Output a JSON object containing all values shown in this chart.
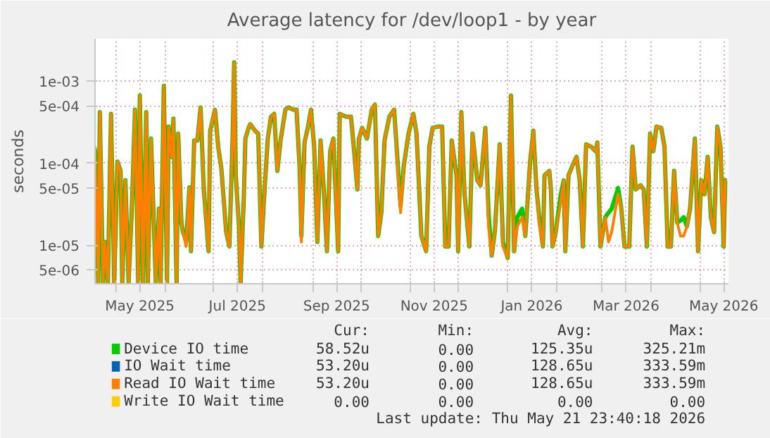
{
  "chart_data": {
    "type": "line",
    "title": "Average latency for /dev/loop1 - by year",
    "ylabel": "seconds",
    "log": "y",
    "grid": true,
    "legend": "bottom",
    "xlim": [
      "2025-04-18",
      "2026-05-19"
    ],
    "xticks": [
      {
        "value": "2025-05-01",
        "label": null
      },
      {
        "value": "2025-05-16",
        "label": "May 2025"
      },
      {
        "value": "2025-06-01",
        "label": null
      },
      {
        "value": "2025-07-01",
        "label": null
      },
      {
        "value": "2025-07-16",
        "label": "Jul 2025"
      },
      {
        "value": "2025-08-01",
        "label": null
      },
      {
        "value": "2025-09-01",
        "label": null
      },
      {
        "value": "2025-09-16",
        "label": "Sep 2025"
      },
      {
        "value": "2025-10-01",
        "label": null
      },
      {
        "value": "2025-11-01",
        "label": null
      },
      {
        "value": "2025-11-16",
        "label": "Nov 2025"
      },
      {
        "value": "2025-12-01",
        "label": null
      },
      {
        "value": "2026-01-01",
        "label": null
      },
      {
        "value": "2026-01-16",
        "label": "Jan 2026"
      },
      {
        "value": "2026-02-01",
        "label": null
      },
      {
        "value": "2026-03-01",
        "label": null
      },
      {
        "value": "2026-03-16",
        "label": "Mar 2026"
      },
      {
        "value": "2026-04-01",
        "label": null
      },
      {
        "value": "2026-05-01",
        "label": null
      },
      {
        "value": "2026-05-16",
        "label": "May 2026"
      }
    ],
    "ylim": [
      3.4e-06,
      0.0033
    ],
    "yticks": [
      {
        "value": 5e-06,
        "label": "5e-06"
      },
      {
        "value": 1e-05,
        "label": "1e-05"
      },
      {
        "value": 5e-05,
        "label": "5e-05"
      },
      {
        "value": 0.0001,
        "label": "1e-04"
      },
      {
        "value": 0.0005,
        "label": "5e-04"
      },
      {
        "value": 0.001,
        "label": "1e-03"
      }
    ],
    "x": [
      "2025-04-18",
      "2025-04-20",
      "2025-04-21",
      "2025-04-23",
      "2025-04-24",
      "2025-04-26",
      "2025-04-28",
      "2025-04-30",
      "2025-05-02",
      "2025-05-04",
      "2025-05-05",
      "2025-05-07",
      "2025-05-09",
      "2025-05-11",
      "2025-05-13",
      "2025-05-15",
      "2025-05-16",
      "2025-05-18",
      "2025-05-20",
      "2025-05-21",
      "2025-05-23",
      "2025-05-26",
      "2025-05-28",
      "2025-05-29",
      "2025-05-31",
      "2025-06-02",
      "2025-06-03",
      "2025-06-05",
      "2025-06-06",
      "2025-06-08",
      "2025-06-09",
      "2025-06-11",
      "2025-06-12",
      "2025-06-14",
      "2025-06-16",
      "2025-06-17",
      "2025-06-19",
      "2025-06-21",
      "2025-06-23",
      "2025-06-25",
      "2025-06-28",
      "2025-06-29",
      "2025-07-02",
      "2025-07-04",
      "2025-07-06",
      "2025-07-09",
      "2025-07-11",
      "2025-07-13",
      "2025-07-14",
      "2025-07-15",
      "2025-07-17",
      "2025-07-18",
      "2025-07-20",
      "2025-07-21",
      "2025-07-23",
      "2025-07-24",
      "2025-07-27",
      "2025-07-29",
      "2025-07-31",
      "2025-08-02",
      "2025-08-04",
      "2025-08-06",
      "2025-08-08",
      "2025-08-10",
      "2025-08-12",
      "2025-08-15",
      "2025-08-17",
      "2025-08-20",
      "2025-08-22",
      "2025-08-24",
      "2025-08-25",
      "2025-08-27",
      "2025-08-29",
      "2025-08-31",
      "2025-09-02",
      "2025-09-04",
      "2025-09-06",
      "2025-09-08",
      "2025-09-10",
      "2025-09-12",
      "2025-09-14",
      "2025-09-17",
      "2025-09-18",
      "2025-09-22",
      "2025-09-25",
      "2025-09-27",
      "2025-09-29",
      "2025-09-30",
      "2025-10-02",
      "2025-10-05",
      "2025-10-08",
      "2025-10-10",
      "2025-10-12",
      "2025-10-14",
      "2025-10-16",
      "2025-10-19",
      "2025-10-22",
      "2025-10-26",
      "2025-10-28",
      "2025-10-31",
      "2025-11-03",
      "2025-11-05",
      "2025-11-08",
      "2025-11-11",
      "2025-11-13",
      "2025-11-15",
      "2025-11-18",
      "2025-11-21",
      "2025-11-23",
      "2025-11-25",
      "2025-11-27",
      "2025-11-30",
      "2025-12-01",
      "2025-12-03",
      "2025-12-05",
      "2025-12-08",
      "2025-12-10",
      "2025-12-13",
      "2025-12-15",
      "2025-12-18",
      "2025-12-20",
      "2025-12-22",
      "2025-12-24",
      "2025-12-27",
      "2025-12-29",
      "2026-01-01",
      "2026-01-03",
      "2026-01-05",
      "2026-01-07",
      "2026-01-10",
      "2026-01-12",
      "2026-01-15",
      "2026-01-17",
      "2026-01-19",
      "2026-01-21",
      "2026-01-23",
      "2026-01-24",
      "2026-01-27",
      "2026-01-28",
      "2026-01-29",
      "2026-01-31",
      "2026-02-03",
      "2026-02-05",
      "2026-02-06",
      "2026-02-08",
      "2026-02-11",
      "2026-02-13",
      "2026-02-15",
      "2026-02-17",
      "2026-02-19",
      "2026-02-22",
      "2026-02-25",
      "2026-02-26",
      "2026-02-28",
      "2026-03-03",
      "2026-03-05",
      "2026-03-07",
      "2026-03-11",
      "2026-03-13",
      "2026-03-15",
      "2026-03-18",
      "2026-03-20",
      "2026-03-22",
      "2026-03-25",
      "2026-03-27",
      "2026-03-29",
      "2026-03-31",
      "2026-04-02",
      "2026-04-04",
      "2026-04-07",
      "2026-04-09",
      "2026-04-11",
      "2026-04-13",
      "2026-04-15",
      "2026-04-17",
      "2026-04-19",
      "2026-04-21",
      "2026-04-23",
      "2026-04-25",
      "2026-04-28",
      "2026-04-30",
      "2026-05-02",
      "2026-05-04",
      "2026-05-06",
      "2026-05-08",
      "2026-05-10",
      "2026-05-12",
      "2026-05-14",
      "2026-05-16",
      "2026-05-17",
      "2026-05-18"
    ],
    "series": [
      {
        "name": "Device IO time",
        "color": "#00cc00",
        "values": [
          0.00015,
          3.5e-06,
          0.00042,
          3.5e-06,
          1.1e-05,
          3.5e-06,
          0.0004,
          3.5e-06,
          0.000105,
          8.1e-05,
          3.5e-06,
          6.2e-05,
          3.5e-06,
          2.8e-05,
          0.00045,
          3.5e-06,
          0.00067,
          3.5e-06,
          0.00042,
          3.5e-06,
          0.0002,
          3.5e-06,
          2.8e-05,
          3.5e-06,
          0.00088,
          3.5e-06,
          0.00028,
          0.00012,
          0.00035,
          3.5e-06,
          0.00023,
          1.9e-05,
          1.45e-05,
          1.1e-05,
          5.1e-05,
          8.5e-06,
          0.00019,
          0.00019,
          0.00048,
          4.8e-05,
          8.5e-06,
          0.00025,
          0.00045,
          0.00016,
          8.6e-05,
          1.45e-05,
          9.7e-06,
          0.0002,
          0.0017,
          7.1e-05,
          1.7e-05,
          3.5e-06,
          3.7e-05,
          0.0002,
          0.00027,
          0.0003,
          0.00025,
          0.00023,
          9.7e-06,
          4.8e-05,
          0.0002,
          0.00037,
          0.0004,
          8.1e-05,
          0.00019,
          0.00045,
          0.00048,
          0.00045,
          0.00045,
          8.1e-05,
          1.3e-05,
          0.00018,
          0.00027,
          0.00045,
          0.00016,
          1.1e-05,
          0.00019,
          4.8e-05,
          8.5e-06,
          0.00014,
          0.0002,
          8.5e-06,
          0.0004,
          0.00037,
          0.00037,
          0.00014,
          4.8e-05,
          0.0002,
          0.00027,
          0.0002,
          0.00045,
          0.00052,
          1.3e-05,
          2.5e-05,
          0.00019,
          0.00037,
          0.00045,
          3e-05,
          9.2e-05,
          0.00023,
          0.0004,
          0.00023,
          1.3e-05,
          8.5e-06,
          0.00016,
          0.00027,
          0.00028,
          0.00028,
          9.7e-06,
          9.7e-06,
          0.00019,
          7.1e-05,
          8.5e-06,
          0.00042,
          4.2e-05,
          9.7e-06,
          0.00023,
          6.2e-05,
          5.4e-05,
          0.00027,
          2.5e-05,
          7.5e-06,
          1.5e-05,
          0.00017,
          1.1e-05,
          7e-06,
          0.00067,
          8.5e-06,
          2.2e-05,
          2.8e-05,
          1.3e-05,
          0.000105,
          0.00025,
          4.8e-05,
          1.9e-05,
          9.7e-06,
          7.1e-05,
          8.1e-05,
          4.8e-05,
          9.7e-06,
          1.45e-05,
          4e-05,
          6.2e-05,
          8.5e-06,
          7.1e-05,
          9.9e-05,
          0.00012,
          6.2e-05,
          9.7e-06,
          0.00017,
          0.00016,
          0.00014,
          0.00018,
          9.7e-06,
          2.2e-05,
          2.5e-05,
          2.8e-05,
          5e-05,
          2.8e-05,
          9.7e-06,
          9.7e-06,
          0.00016,
          4.8e-05,
          5.4e-05,
          4.8e-05,
          9.7e-06,
          0.00023,
          0.00014,
          0.00028,
          0.00027,
          0.00016,
          9.7e-06,
          9.7e-06,
          8.1e-05,
          1.9e-05,
          2e-05,
          2.2e-05,
          1.7e-05,
          2.8e-05,
          0.0002,
          8.5e-06,
          6.2e-05,
          4.2e-05,
          0.00012,
          2.2e-05,
          1.45e-05,
          0.00028,
          0.00016,
          9.7e-06,
          6.2e-05,
          6.2e-05
        ]
      },
      {
        "name": "IO Wait time",
        "color": "#0066b3",
        "values": [
          null,
          null,
          null,
          null,
          null,
          null,
          null,
          null,
          null,
          null,
          null,
          null,
          null,
          null,
          null,
          null,
          null,
          null,
          null,
          null,
          null,
          null,
          null,
          null,
          null,
          null,
          null,
          null,
          null,
          null,
          null,
          null,
          null,
          null,
          null,
          null,
          null,
          null,
          null,
          null,
          null,
          null,
          null,
          null,
          null,
          null,
          null,
          null,
          null,
          null,
          null,
          null,
          null,
          null,
          null,
          null,
          null,
          null,
          null,
          null,
          null,
          null,
          null,
          null,
          null,
          null,
          null,
          null,
          null,
          null,
          null,
          null,
          null,
          null,
          null,
          null,
          null,
          null,
          null,
          null,
          null,
          null,
          null,
          null,
          null,
          null,
          null,
          null,
          null,
          null,
          null,
          null,
          null,
          null,
          null,
          null,
          null,
          null,
          null,
          null,
          null,
          null,
          null,
          null,
          null,
          null,
          null,
          null,
          null,
          null,
          null,
          null,
          null,
          null,
          null,
          null,
          null,
          null,
          null,
          null,
          null,
          null,
          null,
          null,
          null,
          null,
          null,
          null,
          null,
          null,
          null,
          null,
          null,
          null,
          null,
          null,
          null,
          null,
          null,
          null,
          null,
          null,
          null,
          null,
          null,
          null,
          null,
          null,
          null,
          null,
          null,
          null,
          null,
          null,
          null,
          null,
          null,
          null,
          null,
          null,
          null,
          null,
          null,
          null,
          null,
          null,
          null,
          null,
          null,
          null,
          null,
          null,
          null,
          null,
          null,
          null,
          null,
          null,
          null,
          null,
          null,
          null,
          null,
          null,
          null,
          null,
          null,
          null,
          null,
          null,
          null
        ]
      },
      {
        "name": "Read IO Wait time",
        "color": "#ff8000",
        "values": [
          0.00016,
          3.5e-06,
          0.00042,
          3.5e-06,
          1.1e-05,
          3.5e-06,
          0.0004,
          3.5e-06,
          0.000105,
          8.1e-05,
          3.5e-06,
          6.2e-05,
          3.5e-06,
          2.8e-05,
          0.00045,
          3.5e-06,
          0.00067,
          3.5e-06,
          0.00042,
          3.5e-06,
          0.0002,
          3.5e-06,
          2.8e-05,
          3.5e-06,
          0.00088,
          3.5e-06,
          0.00028,
          0.00012,
          0.00035,
          3.5e-06,
          0.00023,
          1.9e-05,
          1.45e-05,
          9.7e-06,
          5.1e-05,
          8.5e-06,
          0.00019,
          0.00019,
          0.00048,
          4.8e-05,
          8.5e-06,
          0.00025,
          0.00045,
          0.00016,
          8.6e-05,
          1.45e-05,
          9.7e-06,
          0.0002,
          0.0017,
          7.1e-05,
          1.7e-05,
          3.5e-06,
          3.7e-05,
          0.0002,
          0.00027,
          0.0003,
          0.00025,
          0.00023,
          9.7e-06,
          4.8e-05,
          0.0002,
          0.00037,
          0.0004,
          8.1e-05,
          0.00019,
          0.00045,
          0.00048,
          0.00045,
          0.00045,
          8.1e-05,
          1.1e-05,
          0.00018,
          0.00027,
          0.00045,
          0.00016,
          1.1e-05,
          0.00019,
          4.8e-05,
          8.5e-06,
          0.00014,
          0.0002,
          8.5e-06,
          0.0004,
          0.00037,
          0.00037,
          0.00014,
          4.8e-05,
          0.0002,
          0.00027,
          0.0002,
          0.00045,
          0.00052,
          1.3e-05,
          2.5e-05,
          0.00019,
          0.00037,
          0.00045,
          2.5e-05,
          9.2e-05,
          0.00023,
          0.0004,
          0.00023,
          1.3e-05,
          8.5e-06,
          0.00016,
          0.00027,
          0.00028,
          0.00028,
          9.7e-06,
          9.7e-06,
          0.00019,
          7.1e-05,
          8.5e-06,
          0.00042,
          4.2e-05,
          9.7e-06,
          0.00023,
          6.2e-05,
          5.4e-05,
          0.00027,
          1.7e-05,
          7.5e-06,
          1.5e-05,
          0.00017,
          9.7e-06,
          7e-06,
          0.00067,
          8.5e-06,
          1.7e-05,
          2.2e-05,
          1.3e-05,
          0.000105,
          0.00025,
          4.8e-05,
          1.7e-05,
          9.7e-06,
          7.1e-05,
          8.1e-05,
          4.8e-05,
          9.7e-06,
          1.45e-05,
          3.2e-05,
          6.2e-05,
          8.5e-06,
          7.1e-05,
          9.9e-05,
          0.00012,
          6.2e-05,
          9.7e-06,
          0.00017,
          0.00016,
          0.00014,
          0.00018,
          9.7e-06,
          2.2e-05,
          1.1e-05,
          1.45e-05,
          4.2e-05,
          2.8e-05,
          9.7e-06,
          9.7e-06,
          0.00016,
          4.8e-05,
          5.4e-05,
          4.8e-05,
          9.7e-06,
          0.00023,
          0.00014,
          0.00028,
          0.00027,
          0.00016,
          9.7e-06,
          9.7e-06,
          8.1e-05,
          1.9e-05,
          1.3e-05,
          1.3e-05,
          1.7e-05,
          2.8e-05,
          0.0002,
          8.5e-06,
          6.2e-05,
          4.2e-05,
          0.00012,
          2.2e-05,
          1.45e-05,
          0.00028,
          0.00016,
          9.7e-06,
          6.2e-05,
          6.2e-05
        ]
      },
      {
        "name": "Write IO Wait time",
        "color": "#ffcc00",
        "values": [
          null,
          null,
          null,
          null,
          null,
          null,
          null,
          null,
          null,
          null,
          null,
          null,
          null,
          null,
          null,
          null,
          null,
          null,
          null,
          null,
          null,
          null,
          null,
          null,
          null,
          null,
          null,
          null,
          null,
          null,
          null,
          null,
          null,
          null,
          null,
          null,
          null,
          null,
          null,
          null,
          null,
          null,
          null,
          null,
          null,
          null,
          null,
          null,
          null,
          null,
          null,
          null,
          null,
          null,
          null,
          null,
          null,
          null,
          null,
          null,
          null,
          null,
          null,
          null,
          null,
          null,
          null,
          null,
          null,
          null,
          null,
          null,
          null,
          null,
          null,
          null,
          null,
          null,
          null,
          null,
          null,
          null,
          null,
          null,
          null,
          null,
          null,
          null,
          null,
          null,
          null,
          null,
          null,
          null,
          null,
          null,
          null,
          null,
          null,
          null,
          null,
          null,
          null,
          null,
          null,
          null,
          null,
          null,
          null,
          null,
          null,
          null,
          null,
          null,
          null,
          null,
          null,
          null,
          null,
          null,
          null,
          null,
          null,
          null,
          null,
          null,
          null,
          null,
          null,
          null,
          null,
          null,
          null,
          null,
          null,
          null,
          null,
          null,
          null,
          null,
          null,
          null,
          null,
          null,
          null,
          null,
          null,
          null,
          null,
          null,
          null,
          null,
          null,
          null,
          null,
          null,
          null,
          null,
          null,
          null,
          null,
          null,
          null,
          null,
          null,
          null,
          null,
          null,
          null,
          null,
          null,
          null,
          null,
          null,
          null,
          null,
          null,
          null,
          null,
          null,
          null,
          null,
          null,
          null,
          null,
          null,
          null,
          null,
          null,
          null,
          null
        ]
      }
    ],
    "annotations": [
      "Cur:",
      "Min:",
      "Avg:",
      "Max:",
      "58.52u",
      "0.00",
      "125.35u",
      "325.21m",
      "53.20u",
      "0.00",
      "128.65u",
      "333.59m",
      "53.20u",
      "0.00",
      "128.65u",
      "333.59m",
      "0.00",
      "0.00",
      "0.00",
      "0.00",
      "Last update: Thu May 21 23:40:18 2026"
    ]
  }
}
